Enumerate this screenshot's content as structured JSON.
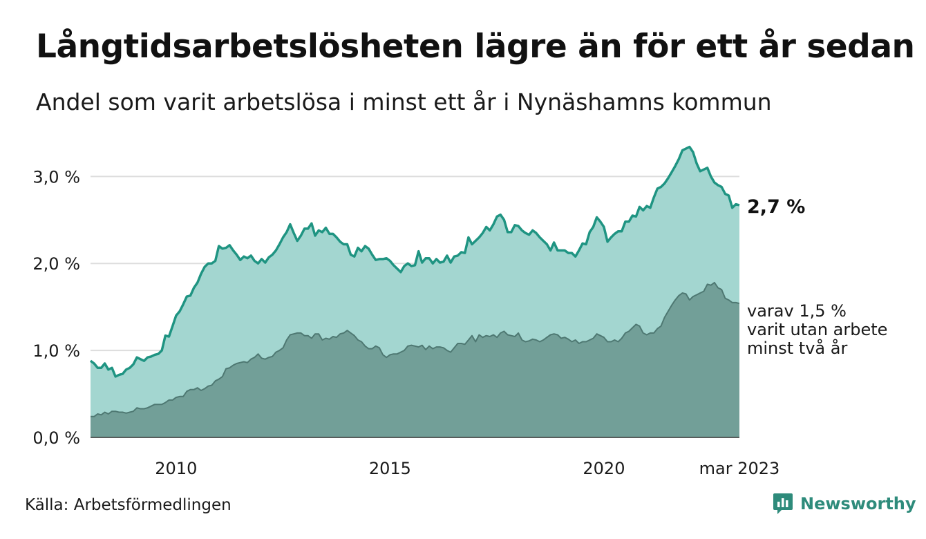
{
  "title": "Långtidsarbetslösheten lägre än för ett år sedan",
  "subtitle": "Andel som varit arbetslösa i minst ett år i Nynäshamns kommun",
  "source": "Källa: Arbetsförmedlingen",
  "brand": {
    "name": "Newsworthy",
    "icon": "newsworthy-logo-icon",
    "color": "#2e8b7b"
  },
  "end_label": "2,7 %",
  "annotation": [
    "varav 1,5 %",
    "varit utan arbete",
    "minst två år"
  ],
  "colors": {
    "long_term_line": "#1f9482",
    "long_term_area": "#a3d6d0",
    "two_year_area": "#729f98",
    "two_year_line": "#4e7872",
    "grid": "#dddddd"
  },
  "chart_data": {
    "type": "area",
    "x_start": "2008-01",
    "x_end": "2023-03",
    "frequency": "monthly",
    "ylim": [
      0,
      3.4
    ],
    "yticks": [
      {
        "value": 0,
        "label": "0,0 %"
      },
      {
        "value": 1,
        "label": "1,0 %"
      },
      {
        "value": 2,
        "label": "2,0 %"
      },
      {
        "value": 3,
        "label": "3,0 %"
      }
    ],
    "xticks": [
      {
        "date": "2010-01",
        "label": "2010"
      },
      {
        "date": "2015-01",
        "label": "2015"
      },
      {
        "date": "2020-01",
        "label": "2020"
      },
      {
        "date": "2023-03",
        "label": "mar 2023"
      }
    ],
    "grid": true,
    "series": [
      {
        "key": "long_term",
        "values": [
          0.88,
          0.85,
          0.8,
          0.8,
          0.85,
          0.78,
          0.8,
          0.7,
          0.72,
          0.73,
          0.78,
          0.8,
          0.84,
          0.92,
          0.9,
          0.88,
          0.92,
          0.93,
          0.95,
          0.96,
          1.0,
          1.17,
          1.16,
          1.28,
          1.4,
          1.45,
          1.53,
          1.62,
          1.63,
          1.72,
          1.78,
          1.88,
          1.96,
          2.0,
          2.0,
          2.03,
          2.2,
          2.17,
          2.18,
          2.21,
          2.15,
          2.1,
          2.04,
          2.08,
          2.06,
          2.09,
          2.03,
          2.0,
          2.05,
          2.01,
          2.07,
          2.1,
          2.15,
          2.22,
          2.3,
          2.36,
          2.45,
          2.35,
          2.26,
          2.32,
          2.4,
          2.4,
          2.46,
          2.32,
          2.38,
          2.36,
          2.41,
          2.34,
          2.34,
          2.3,
          2.25,
          2.22,
          2.22,
          2.1,
          2.08,
          2.18,
          2.14,
          2.2,
          2.17,
          2.1,
          2.04,
          2.05,
          2.05,
          2.06,
          2.03,
          1.98,
          1.94,
          1.9,
          1.97,
          2.0,
          1.97,
          1.98,
          2.14,
          2.01,
          2.06,
          2.06,
          2.0,
          2.05,
          2.01,
          2.02,
          2.09,
          2.01,
          2.08,
          2.09,
          2.13,
          2.12,
          2.3,
          2.22,
          2.26,
          2.3,
          2.35,
          2.42,
          2.38,
          2.45,
          2.54,
          2.56,
          2.5,
          2.36,
          2.36,
          2.44,
          2.43,
          2.38,
          2.35,
          2.33,
          2.38,
          2.35,
          2.3,
          2.26,
          2.22,
          2.15,
          2.24,
          2.15,
          2.15,
          2.15,
          2.12,
          2.12,
          2.08,
          2.15,
          2.23,
          2.22,
          2.36,
          2.42,
          2.53,
          2.48,
          2.42,
          2.25,
          2.3,
          2.34,
          2.37,
          2.37,
          2.48,
          2.48,
          2.55,
          2.54,
          2.65,
          2.61,
          2.66,
          2.64,
          2.76,
          2.86,
          2.88,
          2.92,
          2.98,
          3.05,
          3.12,
          3.2,
          3.3,
          3.32,
          3.34,
          3.28,
          3.15,
          3.06,
          3.08,
          3.1,
          3.0,
          2.93,
          2.9,
          2.88,
          2.8,
          2.78,
          2.64,
          2.68,
          2.67
        ]
      },
      {
        "key": "two_year",
        "values": [
          0.24,
          0.24,
          0.27,
          0.26,
          0.29,
          0.27,
          0.3,
          0.3,
          0.29,
          0.29,
          0.28,
          0.29,
          0.3,
          0.34,
          0.33,
          0.33,
          0.34,
          0.36,
          0.38,
          0.38,
          0.38,
          0.4,
          0.43,
          0.43,
          0.46,
          0.47,
          0.47,
          0.53,
          0.55,
          0.55,
          0.57,
          0.54,
          0.56,
          0.59,
          0.6,
          0.65,
          0.67,
          0.7,
          0.79,
          0.8,
          0.83,
          0.85,
          0.86,
          0.87,
          0.86,
          0.9,
          0.92,
          0.96,
          0.91,
          0.9,
          0.92,
          0.93,
          0.98,
          1.0,
          1.03,
          1.12,
          1.18,
          1.19,
          1.2,
          1.2,
          1.17,
          1.17,
          1.14,
          1.19,
          1.19,
          1.12,
          1.14,
          1.13,
          1.16,
          1.15,
          1.19,
          1.2,
          1.23,
          1.2,
          1.17,
          1.12,
          1.1,
          1.05,
          1.02,
          1.02,
          1.05,
          1.03,
          0.95,
          0.92,
          0.95,
          0.96,
          0.96,
          0.98,
          1.0,
          1.05,
          1.06,
          1.05,
          1.04,
          1.06,
          1.01,
          1.05,
          1.02,
          1.04,
          1.04,
          1.03,
          1.0,
          0.98,
          1.03,
          1.08,
          1.08,
          1.07,
          1.12,
          1.17,
          1.1,
          1.18,
          1.15,
          1.17,
          1.16,
          1.18,
          1.15,
          1.2,
          1.22,
          1.18,
          1.17,
          1.16,
          1.2,
          1.12,
          1.1,
          1.11,
          1.13,
          1.12,
          1.1,
          1.12,
          1.15,
          1.18,
          1.19,
          1.18,
          1.14,
          1.15,
          1.13,
          1.1,
          1.12,
          1.08,
          1.1,
          1.1,
          1.12,
          1.14,
          1.19,
          1.17,
          1.15,
          1.1,
          1.1,
          1.12,
          1.1,
          1.14,
          1.2,
          1.22,
          1.26,
          1.3,
          1.28,
          1.2,
          1.18,
          1.2,
          1.2,
          1.25,
          1.28,
          1.38,
          1.45,
          1.52,
          1.58,
          1.63,
          1.66,
          1.65,
          1.58,
          1.62,
          1.64,
          1.66,
          1.68,
          1.76,
          1.75,
          1.78,
          1.72,
          1.7,
          1.6,
          1.58,
          1.55,
          1.55,
          1.54
        ]
      }
    ]
  }
}
